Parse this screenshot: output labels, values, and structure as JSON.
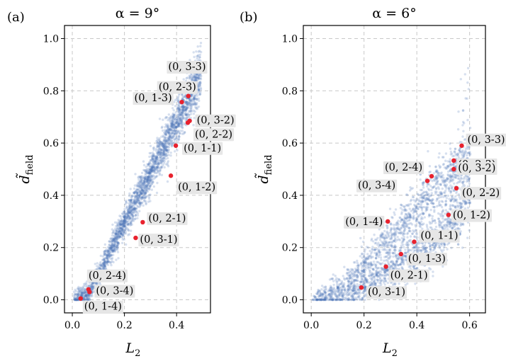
{
  "colors": {
    "scatter": "#4a72b8",
    "highlight": "#e8222e",
    "label_bg": "#e6e6e6"
  },
  "chart_data": [
    {
      "type": "scatter",
      "panel_label": "(a)",
      "title": "α = 9°",
      "xlabel": "L",
      "xlabel_sub": "2",
      "ylabel": "d̃",
      "ylabel_sub": "field",
      "xlim": [
        -0.03,
        0.53
      ],
      "ylim": [
        -0.05,
        1.05
      ],
      "xticks": [
        0.0,
        0.2,
        0.4
      ],
      "xtick_labels": [
        "0.0",
        "0.2",
        "0.4"
      ],
      "yticks": [
        0.0,
        0.2,
        0.4,
        0.6,
        0.8,
        1.0
      ],
      "ytick_labels": [
        "0.0",
        "0.2",
        "0.4",
        "0.6",
        "0.8",
        "1.0"
      ],
      "grid": true,
      "highlighted": [
        {
          "label": "(0, 3-3)",
          "x": 0.455,
          "y": 0.825
        },
        {
          "label": "(0, 2-3)",
          "x": 0.445,
          "y": 0.78
        },
        {
          "label": "(0, 1-3)",
          "x": 0.42,
          "y": 0.757
        },
        {
          "label": "(0, 3-2)",
          "x": 0.45,
          "y": 0.685
        },
        {
          "label": "(0, 2-2)",
          "x": 0.443,
          "y": 0.678
        },
        {
          "label": "(0, 1-1)",
          "x": 0.397,
          "y": 0.59
        },
        {
          "label": "(0, 1-2)",
          "x": 0.378,
          "y": 0.475
        },
        {
          "label": "(0, 2-1)",
          "x": 0.27,
          "y": 0.297
        },
        {
          "label": "(0, 3-1)",
          "x": 0.243,
          "y": 0.237
        },
        {
          "label": "(0, 2-4)",
          "x": 0.062,
          "y": 0.04
        },
        {
          "label": "(0, 3-4)",
          "x": 0.066,
          "y": 0.03
        },
        {
          "label": "(0, 1-4)",
          "x": 0.032,
          "y": 0.005
        }
      ]
    },
    {
      "type": "scatter",
      "panel_label": "(b)",
      "title": "α = 6°",
      "xlabel": "L",
      "xlabel_sub": "2",
      "ylabel": "d̃",
      "ylabel_sub": "field",
      "xlim": [
        -0.03,
        0.66
      ],
      "ylim": [
        -0.05,
        1.05
      ],
      "xticks": [
        0.0,
        0.2,
        0.4,
        0.6
      ],
      "xtick_labels": [
        "0.0",
        "0.2",
        "0.4",
        "0.6"
      ],
      "yticks": [
        0.0,
        0.2,
        0.4,
        0.6,
        0.8,
        1.0
      ],
      "ytick_labels": [
        "0.0",
        "0.2",
        "0.4",
        "0.6",
        "0.8",
        "1.0"
      ],
      "grid": true,
      "highlighted": [
        {
          "label": "(0, 3-3)",
          "x": 0.57,
          "y": 0.59
        },
        {
          "label": "(0, 2-3)",
          "x": 0.54,
          "y": 0.533
        },
        {
          "label": "(0, 3-2)",
          "x": 0.54,
          "y": 0.5
        },
        {
          "label": "(0, 2-2)",
          "x": 0.55,
          "y": 0.427
        },
        {
          "label": "(0, 1-2)",
          "x": 0.52,
          "y": 0.325
        },
        {
          "label": "(0, 2-4)",
          "x": 0.456,
          "y": 0.473
        },
        {
          "label": "(0, 3-4)",
          "x": 0.44,
          "y": 0.455
        },
        {
          "label": "(0, 1-4)",
          "x": 0.29,
          "y": 0.3
        },
        {
          "label": "(0, 1-1)",
          "x": 0.39,
          "y": 0.222
        },
        {
          "label": "(0, 1-3)",
          "x": 0.34,
          "y": 0.175
        },
        {
          "label": "(0, 2-1)",
          "x": 0.283,
          "y": 0.127
        },
        {
          "label": "(0, 3-1)",
          "x": 0.19,
          "y": 0.047
        }
      ]
    }
  ]
}
